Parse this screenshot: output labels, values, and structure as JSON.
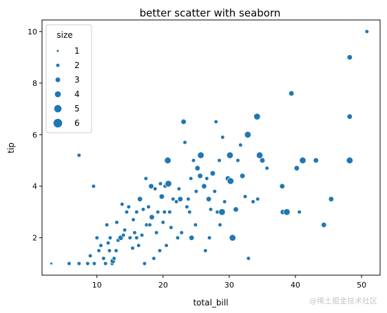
{
  "watermark": "@稀土掘金技术社区",
  "chart_data": {
    "type": "scatter",
    "title": "better scatter with seaborn",
    "xlabel": "total_bill",
    "ylabel": "tip",
    "xlim": [
      1.7,
      52.8
    ],
    "ylim": [
      0.55,
      10.45
    ],
    "xticks": [
      10,
      20,
      30,
      40,
      50
    ],
    "yticks": [
      2,
      4,
      6,
      8,
      10
    ],
    "grid": false,
    "color": "#1f77b4",
    "legend": {
      "title": "size",
      "placement": "top-left",
      "entries": [
        "1",
        "2",
        "3",
        "4",
        "5",
        "6"
      ]
    },
    "points": [
      [
        3.1,
        1.0,
        1
      ],
      [
        5.8,
        1.0,
        2
      ],
      [
        7.3,
        1.0,
        2
      ],
      [
        8.6,
        1.0,
        2
      ],
      [
        9.6,
        1.0,
        2
      ],
      [
        11.3,
        1.0,
        2
      ],
      [
        17.2,
        1.0,
        2
      ],
      [
        7.3,
        5.2,
        2
      ],
      [
        9.5,
        4.0,
        2
      ],
      [
        10.3,
        1.5,
        2
      ],
      [
        10.6,
        1.7,
        2
      ],
      [
        11.0,
        1.2,
        2
      ],
      [
        11.9,
        1.5,
        2
      ],
      [
        12.3,
        1.0,
        2
      ],
      [
        12.4,
        1.1,
        3
      ],
      [
        12.6,
        1.2,
        2
      ],
      [
        13.2,
        1.9,
        2
      ],
      [
        13.6,
        2.0,
        3
      ],
      [
        14.0,
        2.1,
        2
      ],
      [
        14.5,
        3.0,
        2
      ],
      [
        15.0,
        2.0,
        2
      ],
      [
        15.4,
        1.6,
        2
      ],
      [
        16.0,
        2.0,
        2
      ],
      [
        16.3,
        1.7,
        2
      ],
      [
        16.5,
        3.5,
        3
      ],
      [
        17.0,
        3.1,
        2
      ],
      [
        17.5,
        2.5,
        2
      ],
      [
        17.8,
        3.2,
        2
      ],
      [
        18.2,
        4.0,
        3
      ],
      [
        18.3,
        2.8,
        3
      ],
      [
        18.6,
        1.2,
        2
      ],
      [
        19.0,
        2.2,
        2
      ],
      [
        19.5,
        1.5,
        2
      ],
      [
        19.8,
        3.6,
        3
      ],
      [
        20.2,
        3.0,
        2
      ],
      [
        20.3,
        4.0,
        2
      ],
      [
        20.5,
        1.7,
        2
      ],
      [
        20.7,
        5.0,
        4
      ],
      [
        20.8,
        4.1,
        4
      ],
      [
        21.0,
        3.0,
        2
      ],
      [
        21.5,
        3.5,
        2
      ],
      [
        22.2,
        2.0,
        2
      ],
      [
        22.6,
        3.5,
        3
      ],
      [
        22.8,
        2.2,
        2
      ],
      [
        23.1,
        6.5,
        3
      ],
      [
        23.3,
        5.7,
        2
      ],
      [
        23.8,
        3.5,
        2
      ],
      [
        24.0,
        3.0,
        2
      ],
      [
        24.3,
        2.0,
        3
      ],
      [
        24.6,
        5.0,
        2
      ],
      [
        24.9,
        2.5,
        2
      ],
      [
        25.2,
        4.7,
        3
      ],
      [
        25.6,
        4.4,
        3
      ],
      [
        25.7,
        5.2,
        4
      ],
      [
        26.2,
        4.0,
        3
      ],
      [
        26.4,
        1.5,
        2
      ],
      [
        26.9,
        3.5,
        3
      ],
      [
        27.0,
        2.0,
        2
      ],
      [
        27.2,
        3.1,
        2
      ],
      [
        27.5,
        4.5,
        3
      ],
      [
        28.0,
        6.5,
        2
      ],
      [
        28.2,
        3.0,
        2
      ],
      [
        28.5,
        5.0,
        2
      ],
      [
        28.6,
        2.5,
        2
      ],
      [
        28.9,
        3.0,
        4
      ],
      [
        29.0,
        5.9,
        2
      ],
      [
        29.3,
        3.4,
        2
      ],
      [
        29.8,
        4.3,
        3
      ],
      [
        30.1,
        5.2,
        4
      ],
      [
        30.2,
        4.2,
        4
      ],
      [
        30.4,
        2.0,
        2
      ],
      [
        30.5,
        2.0,
        4
      ],
      [
        31.0,
        3.1,
        3
      ],
      [
        31.3,
        5.0,
        2
      ],
      [
        31.7,
        5.6,
        2
      ],
      [
        32.0,
        4.4,
        3
      ],
      [
        32.4,
        3.6,
        2
      ],
      [
        32.8,
        6.0,
        4
      ],
      [
        32.9,
        1.2,
        2
      ],
      [
        33.6,
        3.4,
        2
      ],
      [
        34.2,
        6.7,
        4
      ],
      [
        34.3,
        3.5,
        2
      ],
      [
        34.6,
        5.2,
        4
      ],
      [
        35.0,
        5.0,
        3
      ],
      [
        35.7,
        4.7,
        2
      ],
      [
        38.0,
        4.0,
        3
      ],
      [
        38.1,
        3.0,
        3
      ],
      [
        38.7,
        3.0,
        4
      ],
      [
        39.4,
        7.6,
        3
      ],
      [
        40.2,
        4.7,
        3
      ],
      [
        40.6,
        3.0,
        2
      ],
      [
        41.1,
        5.0,
        4
      ],
      [
        43.1,
        5.0,
        3
      ],
      [
        44.3,
        2.5,
        3
      ],
      [
        45.4,
        3.5,
        3
      ],
      [
        48.2,
        9.0,
        3
      ],
      [
        48.2,
        6.7,
        3
      ],
      [
        48.2,
        5.0,
        4
      ],
      [
        50.8,
        10.0,
        2
      ],
      [
        10.0,
        2.0,
        2
      ],
      [
        11.5,
        2.5,
        2
      ],
      [
        12.9,
        1.5,
        2
      ],
      [
        14.2,
        2.3,
        2
      ],
      [
        15.5,
        2.7,
        2
      ],
      [
        16.8,
        2.1,
        2
      ],
      [
        18.0,
        2.5,
        2
      ],
      [
        19.2,
        3.0,
        2
      ],
      [
        20.0,
        2.6,
        2
      ],
      [
        21.2,
        2.4,
        2
      ],
      [
        22.0,
        3.4,
        2
      ],
      [
        14.8,
        3.2,
        2
      ],
      [
        13.0,
        2.6,
        2
      ],
      [
        11.7,
        1.8,
        2
      ],
      [
        16.0,
        3.0,
        2
      ],
      [
        17.4,
        4.3,
        2
      ],
      [
        18.8,
        3.9,
        2
      ],
      [
        12.0,
        2.0,
        2
      ],
      [
        15.7,
        2.2,
        2
      ],
      [
        19.6,
        4.1,
        2
      ],
      [
        22.4,
        3.9,
        2
      ],
      [
        23.6,
        3.2,
        2
      ],
      [
        25.0,
        3.8,
        2
      ],
      [
        26.6,
        4.3,
        2
      ],
      [
        27.8,
        3.8,
        2
      ],
      [
        24.2,
        4.3,
        2
      ],
      [
        13.8,
        3.3,
        2
      ],
      [
        9.0,
        1.3,
        2
      ]
    ]
  }
}
